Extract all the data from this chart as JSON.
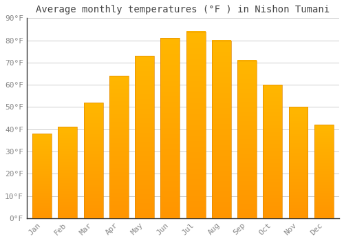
{
  "title": "Average monthly temperatures (°F ) in Nishon Tumani",
  "months": [
    "Jan",
    "Feb",
    "Mar",
    "Apr",
    "May",
    "Jun",
    "Jul",
    "Aug",
    "Sep",
    "Oct",
    "Nov",
    "Dec"
  ],
  "values": [
    38,
    41,
    52,
    64,
    73,
    81,
    84,
    80,
    71,
    60,
    50,
    42
  ],
  "bar_color_top": "#FFB700",
  "bar_color_bottom": "#FF9500",
  "bar_edge_color": "#E08800",
  "background_color": "#FFFFFF",
  "grid_color": "#CCCCCC",
  "ylim": [
    0,
    90
  ],
  "yticks": [
    0,
    10,
    20,
    30,
    40,
    50,
    60,
    70,
    80,
    90
  ],
  "ytick_labels": [
    "0°F",
    "10°F",
    "20°F",
    "30°F",
    "40°F",
    "50°F",
    "60°F",
    "70°F",
    "80°F",
    "90°F"
  ],
  "title_fontsize": 10,
  "tick_fontsize": 8,
  "font_family": "monospace",
  "tick_color": "#888888",
  "bar_width": 0.75
}
